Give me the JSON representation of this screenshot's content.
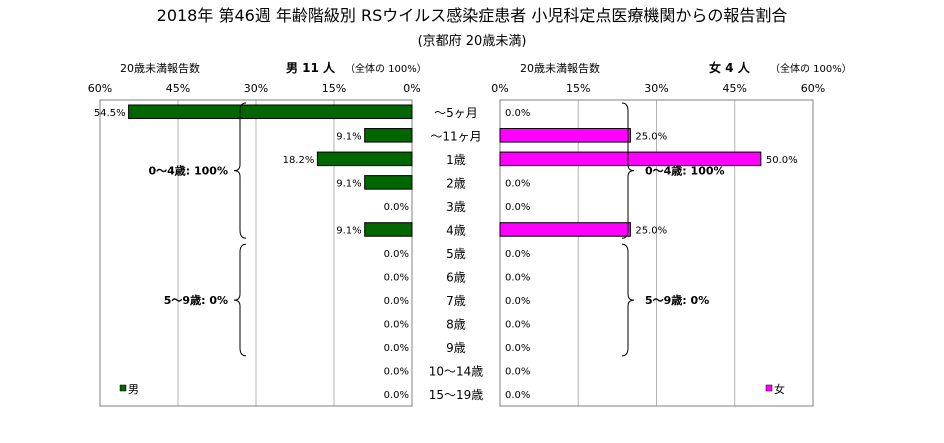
{
  "title": "2018年 第46週 年齢階級別 RSウイルス感染症患者 小児科定点医療機関からの報告割合",
  "subtitle": "(京都府 20歳未満)",
  "colors": {
    "male": "#006600",
    "female": "#ff00ff",
    "grid": "#b3b3b3",
    "frame": "#808080"
  },
  "chart_data": {
    "type": "bar",
    "orientation": "horizontal",
    "categories": [
      "～5ヶ月",
      "～11ヶ月",
      "1歳",
      "2歳",
      "3歳",
      "4歳",
      "5歳",
      "6歳",
      "7歳",
      "8歳",
      "9歳",
      "10～14歳",
      "15～19歳"
    ],
    "xlim": [
      0,
      60
    ],
    "ticks": [
      "0%",
      "15%",
      "30%",
      "45%",
      "60%"
    ],
    "grid": true,
    "panels": [
      {
        "side": "left",
        "header_left": "20歳未満報告数",
        "header_main": "男  11 人",
        "header_note": "（全体の   100%）",
        "legend": "男",
        "series": [
          {
            "name": "男",
            "values": [
              54.5,
              9.1,
              18.2,
              9.1,
              0.0,
              9.1,
              0.0,
              0.0,
              0.0,
              0.0,
              0.0,
              0.0,
              0.0
            ]
          }
        ],
        "data_labels": [
          "54.5%",
          "9.1%",
          "18.2%",
          "9.1%",
          "0.0%",
          "9.1%",
          "0.0%",
          "0.0%",
          "0.0%",
          "0.0%",
          "0.0%",
          "0.0%",
          "0.0%"
        ],
        "groups": [
          {
            "label": "0～4歳: 100%",
            "from": 0,
            "to": 5
          },
          {
            "label": "5～9歳: 0%",
            "from": 6,
            "to": 10
          }
        ]
      },
      {
        "side": "right",
        "header_left": "20歳未満報告数",
        "header_main": "女   4 人",
        "header_note": "（全体の   100%）",
        "legend": "女",
        "series": [
          {
            "name": "女",
            "values": [
              0.0,
              25.0,
              50.0,
              0.0,
              0.0,
              25.0,
              0.0,
              0.0,
              0.0,
              0.0,
              0.0,
              0.0,
              0.0
            ]
          }
        ],
        "data_labels": [
          "0.0%",
          "25.0%",
          "50.0%",
          "0.0%",
          "0.0%",
          "25.0%",
          "0.0%",
          "0.0%",
          "0.0%",
          "0.0%",
          "0.0%",
          "0.0%",
          "0.0%"
        ],
        "groups": [
          {
            "label": "0～4歳: 100%",
            "from": 0,
            "to": 5
          },
          {
            "label": "5～9歳: 0%",
            "from": 6,
            "to": 10
          }
        ]
      }
    ]
  }
}
